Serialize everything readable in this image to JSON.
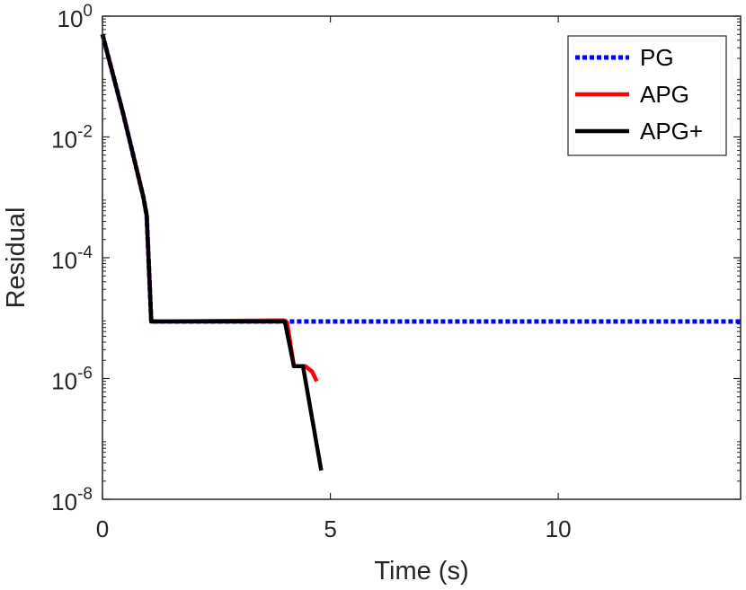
{
  "chart_data": {
    "type": "line",
    "title": "",
    "xlabel": "Time (s)",
    "ylabel": "Residual",
    "xlim": [
      0,
      14
    ],
    "ylim": [
      1e-08,
      1
    ],
    "yscale": "log",
    "grid": false,
    "legend_position": "top-right",
    "x_ticks": [
      {
        "value": 0,
        "label": "0"
      },
      {
        "value": 5,
        "label": "5"
      },
      {
        "value": 10,
        "label": "10"
      }
    ],
    "y_ticks": [
      {
        "value": 1,
        "base": "10",
        "exp": "0"
      },
      {
        "value": 0.01,
        "base": "10",
        "exp": "-2"
      },
      {
        "value": 0.0001,
        "base": "10",
        "exp": "-4"
      },
      {
        "value": 1e-06,
        "base": "10",
        "exp": "-6"
      },
      {
        "value": 1e-08,
        "base": "10",
        "exp": "-8"
      }
    ],
    "series": [
      {
        "name": "PG",
        "color": "#0000ff",
        "style": "dotted",
        "points": [
          [
            0,
            0.5
          ],
          [
            0.45,
            0.025
          ],
          [
            0.9,
            0.001
          ],
          [
            0.97,
            0.0005
          ],
          [
            1.07,
            8.8e-06
          ],
          [
            4.1,
            8.8e-06
          ],
          [
            14,
            8.8e-06
          ]
        ]
      },
      {
        "name": "APG",
        "color": "#ff0000",
        "style": "solid",
        "points": [
          [
            0,
            0.5
          ],
          [
            0.45,
            0.025
          ],
          [
            0.9,
            0.001
          ],
          [
            0.97,
            0.0005
          ],
          [
            1.07,
            8.8e-06
          ],
          [
            3.98,
            9.2e-06
          ],
          [
            4.05,
            8.5e-06
          ],
          [
            4.2,
            1.6e-06
          ],
          [
            4.45,
            1.6e-06
          ],
          [
            4.6,
            1.3e-06
          ],
          [
            4.7,
            9e-07
          ]
        ]
      },
      {
        "name": "APG+",
        "color": "#000000",
        "style": "solid",
        "points": [
          [
            0,
            0.5
          ],
          [
            0.45,
            0.025
          ],
          [
            0.9,
            0.001
          ],
          [
            0.97,
            0.0005
          ],
          [
            1.07,
            8.8e-06
          ],
          [
            4.0,
            8.8e-06
          ],
          [
            4.2,
            1.6e-06
          ],
          [
            4.4,
            1.6e-06
          ],
          [
            4.8,
            3e-08
          ]
        ]
      }
    ]
  }
}
